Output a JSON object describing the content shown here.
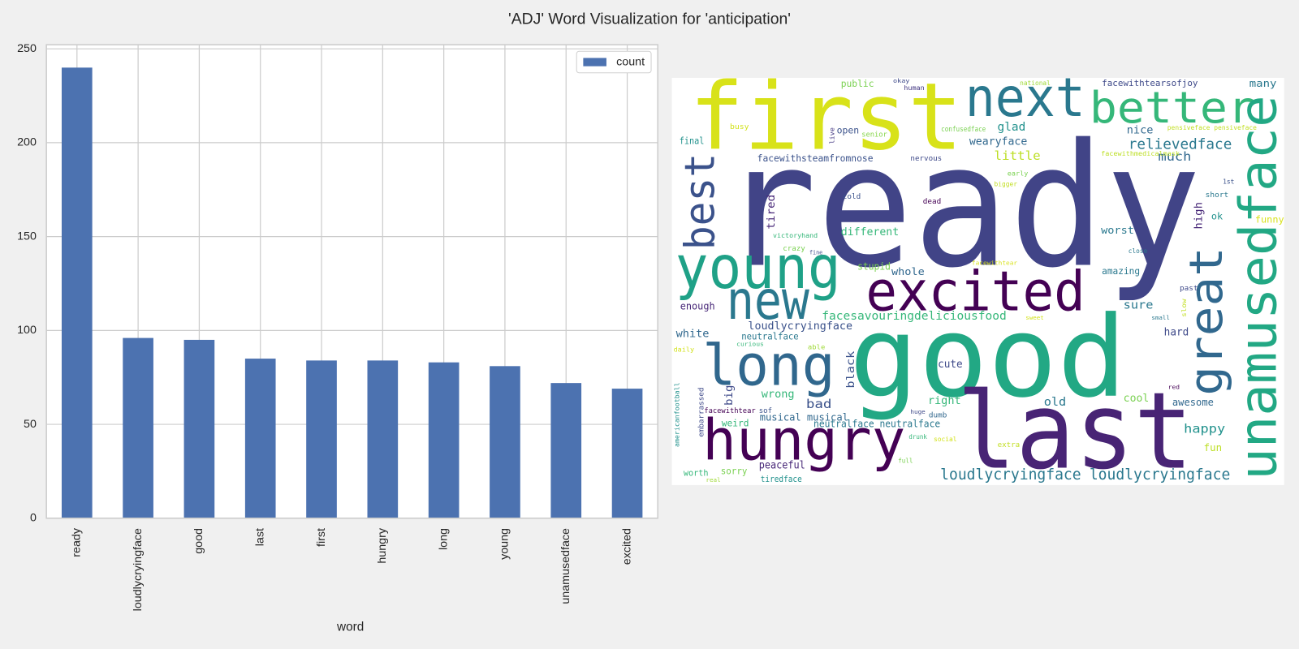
{
  "title": "'ADJ' Word Visualization for 'anticipation'",
  "chart_data": [
    {
      "type": "bar",
      "x_label": "word",
      "categories": [
        "ready",
        "loudlycryingface",
        "good",
        "last",
        "first",
        "hungry",
        "long",
        "young",
        "unamusedface",
        "excited"
      ],
      "series": [
        {
          "name": "count",
          "color": "#4c72b0",
          "values": [
            240,
            96,
            95,
            85,
            84,
            84,
            83,
            81,
            72,
            69
          ]
        }
      ],
      "ylim": [
        0,
        252.2
      ],
      "yticks": [
        0,
        50,
        100,
        150,
        200,
        250
      ],
      "grid": true,
      "legend": "upper right"
    },
    {
      "type": "wordcloud",
      "background": "#ffffff",
      "words": [
        {
          "text": "ready",
          "color": "#414487"
        },
        {
          "text": "good",
          "color": "#22a884"
        },
        {
          "text": "last",
          "color": "#482475"
        },
        {
          "text": "first",
          "color": "#d8e219"
        },
        {
          "text": "next",
          "color": "#2a788e"
        },
        {
          "text": "better",
          "color": "#35b779"
        },
        {
          "text": "unamusedface",
          "color": "#22a884"
        },
        {
          "text": "great",
          "color": "#31688e"
        },
        {
          "text": "best",
          "color": "#3b528b"
        },
        {
          "text": "young",
          "color": "#1fa187"
        },
        {
          "text": "new",
          "color": "#2a788e"
        },
        {
          "text": "excited",
          "color": "#440154"
        },
        {
          "text": "long",
          "color": "#30678d"
        },
        {
          "text": "hungry",
          "color": "#440154"
        },
        {
          "text": "loudlycryingface",
          "color": "#2a788e"
        },
        {
          "text": "loudlycryingface",
          "color": "#2a788e"
        },
        {
          "text": "relievedface",
          "color": "#2a788e"
        },
        {
          "text": "wearyface",
          "color": "#31688e"
        },
        {
          "text": "facewithsteamfromnose",
          "color": "#3b528b"
        },
        {
          "text": "facesavouringdeliciousfood",
          "color": "#35b779"
        },
        {
          "text": "loudlycryingface",
          "color": "#3b528b"
        },
        {
          "text": "little",
          "color": "#bddf26"
        },
        {
          "text": "much",
          "color": "#31688e"
        },
        {
          "text": "glad",
          "color": "#21918c"
        },
        {
          "text": "nice",
          "color": "#31688e"
        },
        {
          "text": "many",
          "color": "#2a788e"
        },
        {
          "text": "facewithtearsofjoy",
          "color": "#3e4989"
        },
        {
          "text": "public",
          "color": "#7ad151"
        },
        {
          "text": "okay",
          "color": "#3e4989"
        },
        {
          "text": "human",
          "color": "#443983"
        },
        {
          "text": "national",
          "color": "#a0da39"
        },
        {
          "text": "busy",
          "color": "#d2e21b"
        },
        {
          "text": "open",
          "color": "#3b528b"
        },
        {
          "text": "senior",
          "color": "#86d549"
        },
        {
          "text": "live",
          "color": "#443983"
        },
        {
          "text": "confusedface",
          "color": "#7ad151"
        },
        {
          "text": "pensiveface pensiveface",
          "color": "#c2df23"
        },
        {
          "text": "final",
          "color": "#21918c"
        },
        {
          "text": "facewithmedicalmask",
          "color": "#bddf26"
        },
        {
          "text": "early",
          "color": "#7ad151"
        },
        {
          "text": "bigger",
          "color": "#c2df23"
        },
        {
          "text": "nervous",
          "color": "#3e4989"
        },
        {
          "text": "1st",
          "color": "#3b528b"
        },
        {
          "text": "short",
          "color": "#2a788e"
        },
        {
          "text": "cold",
          "color": "#3b528b"
        },
        {
          "text": "dead",
          "color": "#440154"
        },
        {
          "text": "tired",
          "color": "#482878"
        },
        {
          "text": "high",
          "color": "#482878"
        },
        {
          "text": "ok",
          "color": "#21918c"
        },
        {
          "text": "funny",
          "color": "#d8e219"
        },
        {
          "text": "different",
          "color": "#35b779"
        },
        {
          "text": "worst",
          "color": "#2a788e"
        },
        {
          "text": "victoryhand",
          "color": "#35b779"
        },
        {
          "text": "crazy",
          "color": "#7ad151"
        },
        {
          "text": "fine",
          "color": "#3e4989"
        },
        {
          "text": "close",
          "color": "#2a788e"
        },
        {
          "text": "facewithtear",
          "color": "#d8e219"
        },
        {
          "text": "stupid",
          "color": "#7ad151"
        },
        {
          "text": "whole",
          "color": "#31688e"
        },
        {
          "text": "amazing",
          "color": "#2a788e"
        },
        {
          "text": "past",
          "color": "#3e4989"
        },
        {
          "text": "enough",
          "color": "#482878"
        },
        {
          "text": "sure",
          "color": "#2a788e"
        },
        {
          "text": "slow",
          "color": "#c2df23"
        },
        {
          "text": "sweet",
          "color": "#d2e21b"
        },
        {
          "text": "small",
          "color": "#2a788e"
        },
        {
          "text": "white",
          "color": "#31688e"
        },
        {
          "text": "neutralface",
          "color": "#2a788e"
        },
        {
          "text": "hard",
          "color": "#3e4989"
        },
        {
          "text": "able",
          "color": "#a0da39"
        },
        {
          "text": "daily",
          "color": "#d2e21b"
        },
        {
          "text": "curious",
          "color": "#35b779"
        },
        {
          "text": "black",
          "color": "#3b528b"
        },
        {
          "text": "cute",
          "color": "#3e4989"
        },
        {
          "text": "big",
          "color": "#3e4989"
        },
        {
          "text": "wrong",
          "color": "#35b779"
        },
        {
          "text": "americanfootball",
          "color": "#21918c"
        },
        {
          "text": "embarrassed",
          "color": "#3e4989"
        },
        {
          "text": "red",
          "color": "#440154"
        },
        {
          "text": "right",
          "color": "#35b779"
        },
        {
          "text": "cool",
          "color": "#7ad151"
        },
        {
          "text": "old",
          "color": "#2a788e"
        },
        {
          "text": "bad",
          "color": "#3b528b"
        },
        {
          "text": "awesome",
          "color": "#31688e"
        },
        {
          "text": "facewithtear",
          "color": "#440154"
        },
        {
          "text": "sof",
          "color": "#3b528b"
        },
        {
          "text": "musical",
          "color": "#31688e"
        },
        {
          "text": "musical",
          "color": "#31688e"
        },
        {
          "text": "huge",
          "color": "#3e4989"
        },
        {
          "text": "dumb",
          "color": "#31688e"
        },
        {
          "text": "weird",
          "color": "#35b779"
        },
        {
          "text": "neutralface neutralface",
          "color": "#2a788e"
        },
        {
          "text": "happy",
          "color": "#21918c"
        },
        {
          "text": "drunk",
          "color": "#35b779"
        },
        {
          "text": "social",
          "color": "#d2e21b"
        },
        {
          "text": "extra",
          "color": "#c2df23"
        },
        {
          "text": "fun",
          "color": "#bddf26"
        },
        {
          "text": "full",
          "color": "#7ad151"
        },
        {
          "text": "peaceful",
          "color": "#482878"
        },
        {
          "text": "sorry",
          "color": "#7ad151"
        },
        {
          "text": "worth",
          "color": "#35b779"
        },
        {
          "text": "real",
          "color": "#a0da39"
        },
        {
          "text": "tiredface",
          "color": "#21918c"
        }
      ]
    }
  ]
}
